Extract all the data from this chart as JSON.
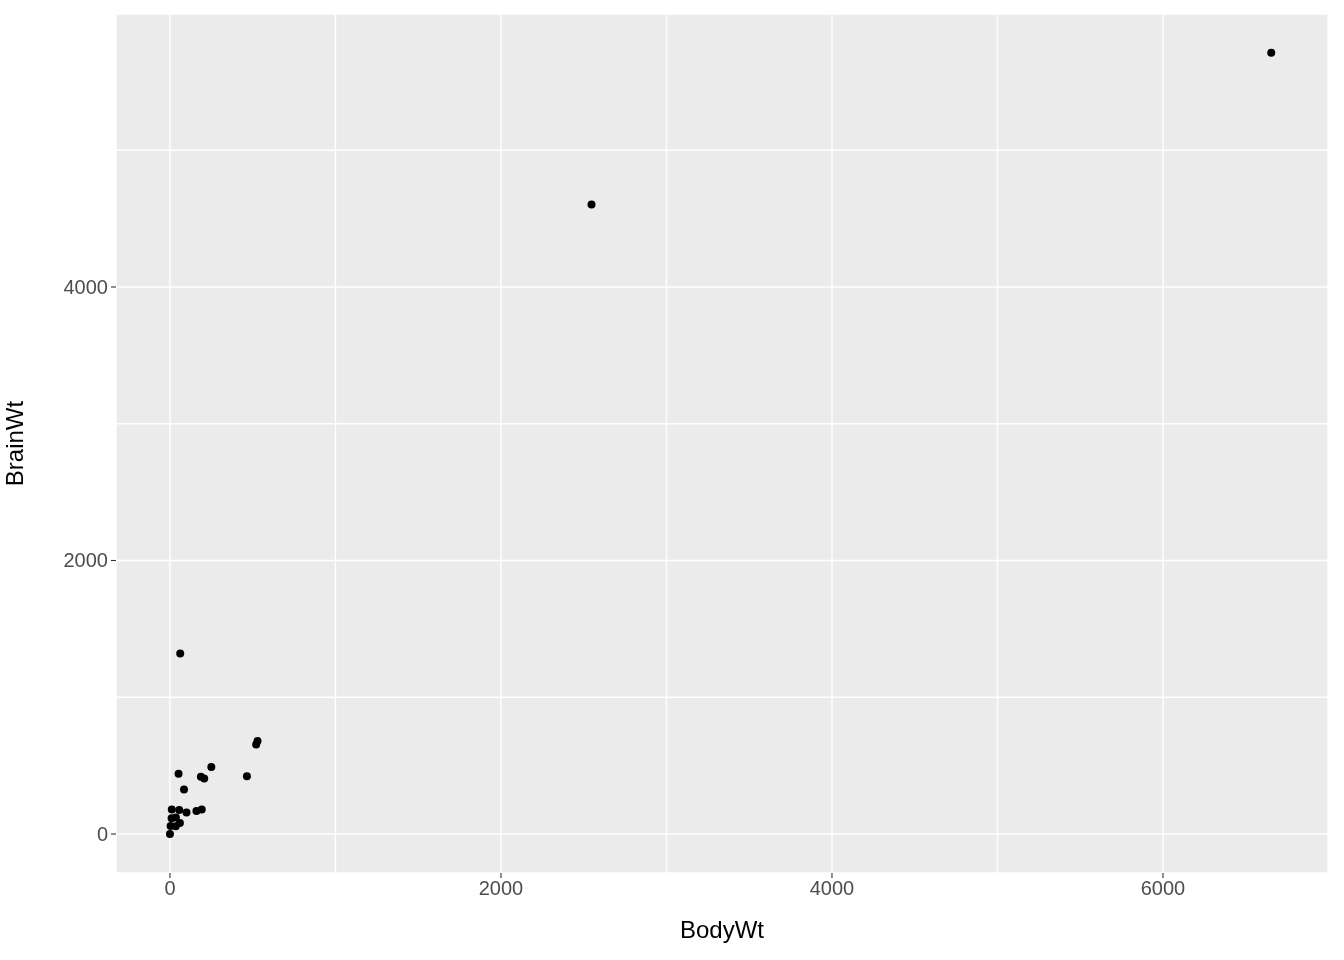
{
  "chart_data": {
    "type": "scatter",
    "xlabel": "BodyWt",
    "ylabel": "BrainWt",
    "x": [
      0,
      4,
      10,
      11,
      35,
      36,
      56,
      60,
      52,
      62,
      85,
      100,
      160,
      192,
      187,
      207,
      250,
      465,
      521,
      529,
      2547,
      6654
    ],
    "series": [
      {
        "color": "#000000",
        "values": [
          0,
          58,
          115,
          180,
          56,
          120,
          175,
          81,
          440,
          1320,
          325,
          157,
          169,
          180,
          419,
          406,
          490,
          423,
          655,
          680,
          4603,
          5712
        ]
      }
    ],
    "xlim": [
      -326,
      6997
    ],
    "ylim": [
      -285,
      5996
    ],
    "xticks": [
      0,
      {
        "value": 1000,
        "label": null
      },
      2000,
      {
        "value": 3000,
        "label": null
      },
      4000,
      {
        "value": 5000,
        "label": null
      },
      6000
    ],
    "yticks": [
      0,
      {
        "value": 1000,
        "label": null
      },
      2000,
      {
        "value": 3000,
        "label": null
      },
      4000,
      {
        "value": 5000,
        "label": null
      }
    ],
    "grid": true,
    "marker": "circle"
  }
}
